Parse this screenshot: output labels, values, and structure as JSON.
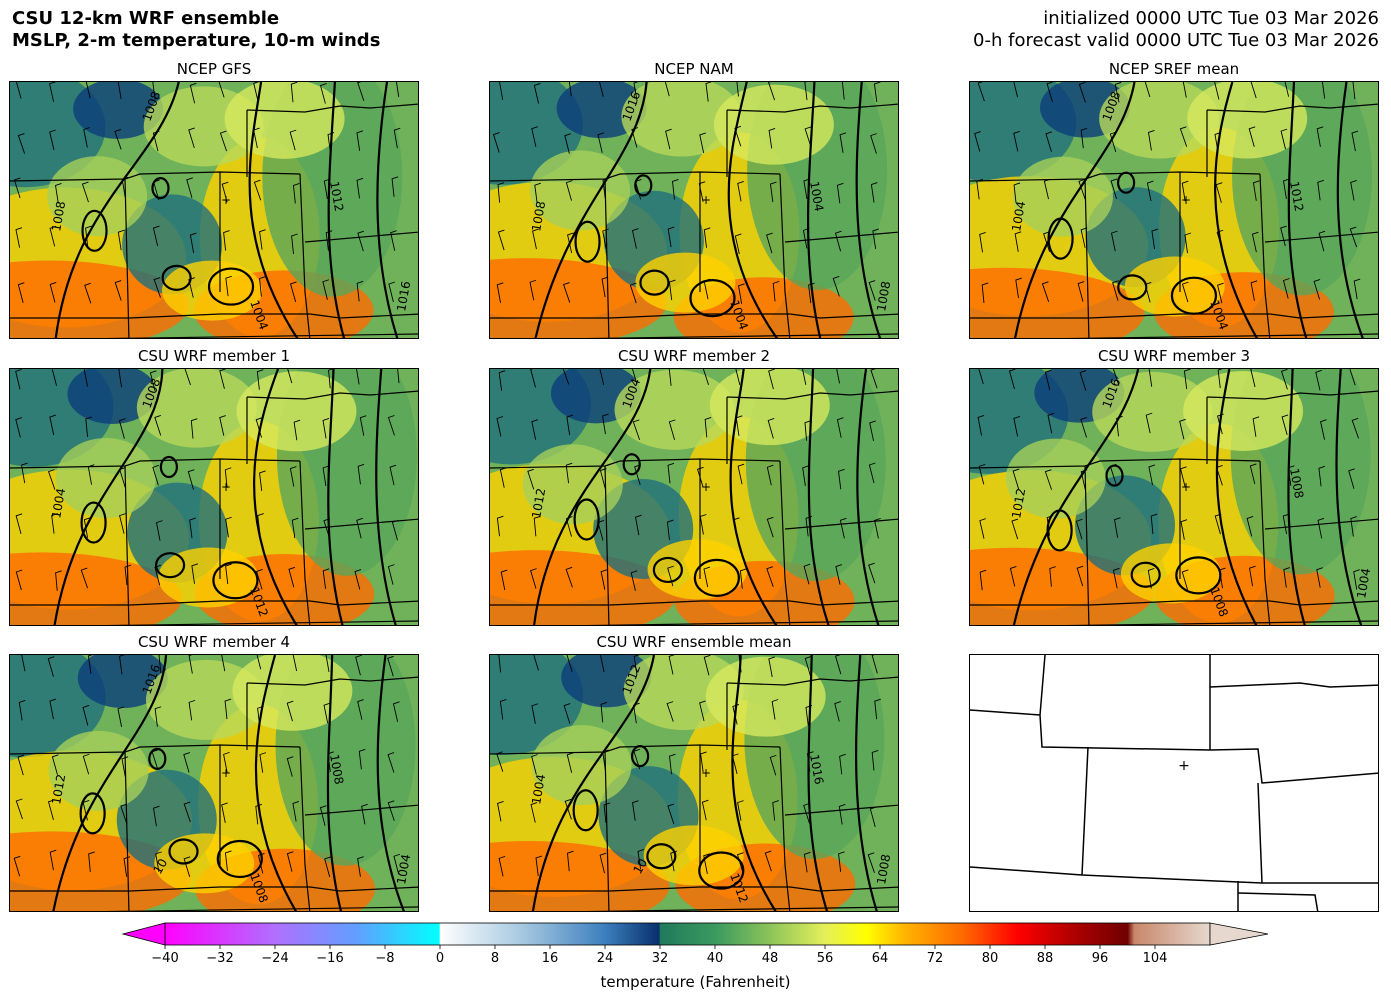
{
  "header": {
    "title_line1": "CSU 12-km WRF ensemble",
    "title_line2": "MSLP, 2-m temperature, 10-m winds",
    "init_line": "initialized 0000 UTC Tue 03 Mar 2026",
    "valid_line": "0-h forecast valid 0000 UTC Tue 03 Mar 2026"
  },
  "panels": [
    {
      "title": "NCEP GFS",
      "variant": 0,
      "labels": [
        "1008",
        "1008",
        "1004",
        "1012",
        "1016"
      ]
    },
    {
      "title": "NCEP NAM",
      "variant": 1,
      "labels": [
        "1016",
        "1008",
        "1004",
        "1004",
        "1008"
      ]
    },
    {
      "title": "NCEP SREF mean",
      "variant": 2,
      "labels": [
        "1008",
        "1004",
        "1004",
        "1012"
      ]
    },
    {
      "title": "CSU WRF member 1",
      "variant": 3,
      "labels": [
        "1008",
        "1004",
        "1012"
      ]
    },
    {
      "title": "CSU WRF member 2",
      "variant": 4,
      "labels": [
        "1004",
        "1012"
      ]
    },
    {
      "title": "CSU WRF member 3",
      "variant": 5,
      "labels": [
        "1016",
        "1012",
        "1008",
        "1008",
        "1004"
      ]
    },
    {
      "title": "CSU WRF member 4",
      "variant": 6,
      "labels": [
        "1016",
        "1012",
        "1008",
        "1008",
        "1004",
        "10"
      ]
    },
    {
      "title": "CSU WRF ensemble mean",
      "variant": 7,
      "labels": [
        "1012",
        "1004",
        "1012",
        "1016",
        "1008",
        "10"
      ]
    },
    {
      "title": "",
      "variant": -1,
      "labels": []
    }
  ],
  "colorbar": {
    "label": "temperature (Fahrenheit)",
    "ticks": [
      "−40",
      "−32",
      "−24",
      "−16",
      "−8",
      "0",
      "8",
      "16",
      "24",
      "32",
      "40",
      "48",
      "56",
      "64",
      "72",
      "80",
      "88",
      "96",
      "104"
    ],
    "range": [
      -40,
      112
    ],
    "stops": [
      {
        "t": -40,
        "c": "#ff00ff"
      },
      {
        "t": -24,
        "c": "#b070ff"
      },
      {
        "t": -12,
        "c": "#60a0ff"
      },
      {
        "t": -0.1,
        "c": "#00ffff"
      },
      {
        "t": 0,
        "c": "#ffffff"
      },
      {
        "t": 12,
        "c": "#a6c8e0"
      },
      {
        "t": 24,
        "c": "#3c7fbf"
      },
      {
        "t": 31.9,
        "c": "#08306b"
      },
      {
        "t": 32,
        "c": "#1f7a5c"
      },
      {
        "t": 40,
        "c": "#3a9a5e"
      },
      {
        "t": 48,
        "c": "#8cc45a"
      },
      {
        "t": 56,
        "c": "#e4ef5a"
      },
      {
        "t": 62,
        "c": "#ffff00"
      },
      {
        "t": 68,
        "c": "#ffb000"
      },
      {
        "t": 76,
        "c": "#ff6a00"
      },
      {
        "t": 84,
        "c": "#ff0000"
      },
      {
        "t": 92,
        "c": "#b00000"
      },
      {
        "t": 100,
        "c": "#700000"
      },
      {
        "t": 101,
        "c": "#c8876a"
      },
      {
        "t": 112,
        "c": "#e6d8cf"
      }
    ]
  },
  "colors": {
    "cold": "#1f6f7a",
    "mid": "#8cc45a",
    "warm": "#ffd200",
    "hot": "#ff6a00",
    "dark": "#0b3d7a"
  }
}
